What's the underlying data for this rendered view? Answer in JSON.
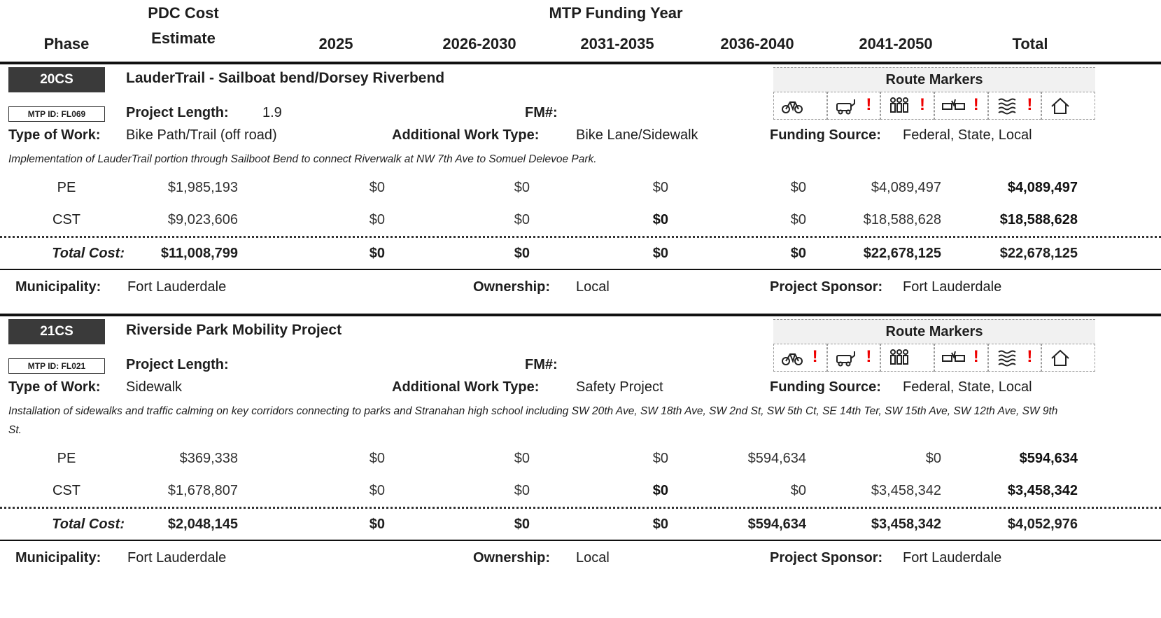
{
  "header": {
    "phase": "Phase",
    "pdc_cost": "PDC Cost",
    "estimate": "Estimate",
    "mtp_funding_year": "MTP Funding Year",
    "years": [
      "2025",
      "2026-2030",
      "2031-2035",
      "2036-2040",
      "2041-2050"
    ],
    "total": "Total"
  },
  "projects": [
    {
      "id": "20CS",
      "mtp_id": "MTP ID: FL069",
      "name": "LauderTrail - Sailboat bend/Dorsey Riverbend",
      "length_label": "Project Length:",
      "length": "1.9",
      "fm_label": "FM#:",
      "route_markers": "Route Markers",
      "marker_alerts": [
        null,
        "!",
        "!",
        "!",
        "!",
        null
      ],
      "type_label": "Type of Work:",
      "type": "Bike Path/Trail (off road)",
      "additional_label": "Additional Work Type:",
      "additional": "Bike Lane/Sidewalk",
      "funding_label": "Funding Source:",
      "funding": "Federal, State, Local",
      "description": "Implementation of LauderTrail portion through Sailboot Bend to connect Riverwalk at NW 7th Ave to Somuel Delevoe Park.",
      "rows": [
        {
          "phase": "PE",
          "values": [
            "$1,985,193",
            "$0",
            "$0",
            "$0",
            "$0",
            "$4,089,497",
            "$4,089,497"
          ]
        },
        {
          "phase": "CST",
          "values": [
            "$9,023,606",
            "$0",
            "$0",
            "$0",
            "$0",
            "$18,588,628",
            "$18,588,628"
          ]
        }
      ],
      "total": {
        "label": "Total Cost:",
        "values": [
          "$11,008,799",
          "$0",
          "$0",
          "$0",
          "$0",
          "$22,678,125",
          "$22,678,125"
        ]
      },
      "footer": {
        "municipality_label": "Municipality:",
        "municipality": "Fort Lauderdale",
        "ownership_label": "Ownership:",
        "ownership": "Local",
        "sponsor_label": "Project Sponsor:",
        "sponsor": "Fort Lauderdale"
      }
    },
    {
      "id": "21CS",
      "mtp_id": "MTP ID: FL021",
      "name": "Riverside Park Mobility Project",
      "length_label": "Project Length:",
      "fm_label": "FM#:",
      "route_markers": "Route Markers",
      "marker_alerts": [
        "!",
        "!",
        null,
        "!",
        "!",
        null
      ],
      "type_label": "Type of Work:",
      "type": "Sidewalk",
      "additional_label": "Additional Work Type:",
      "additional": "Safety Project",
      "funding_label": "Funding Source:",
      "funding": "Federal, State, Local",
      "description": "Installation of sidewalks and traffic calming on key corridors connecting to parks and Stranahan high school including SW 20th Ave, SW 18th Ave, SW 2nd St, SW 5th Ct, SE 14th Ter, SW 15th Ave, SW 12th Ave, SW 9th St.",
      "rows": [
        {
          "phase": "PE",
          "values": [
            "$369,338",
            "$0",
            "$0",
            "$0",
            "$594,634",
            "$0",
            "$594,634"
          ]
        },
        {
          "phase": "CST",
          "values": [
            "$1,678,807",
            "$0",
            "$0",
            "$0",
            "$0",
            "$3,458,342",
            "$3,458,342"
          ]
        }
      ],
      "total": {
        "label": "Total Cost:",
        "values": [
          "$2,048,145",
          "$0",
          "$0",
          "$0",
          "$594,634",
          "$3,458,342",
          "$4,052,976"
        ]
      },
      "footer": {
        "municipality_label": "Municipality:",
        "municipality": "Fort Lauderdale",
        "ownership_label": "Ownership:",
        "ownership": "Local",
        "sponsor_label": "Project Sponsor:",
        "sponsor": "Fort Lauderdale"
      }
    }
  ]
}
